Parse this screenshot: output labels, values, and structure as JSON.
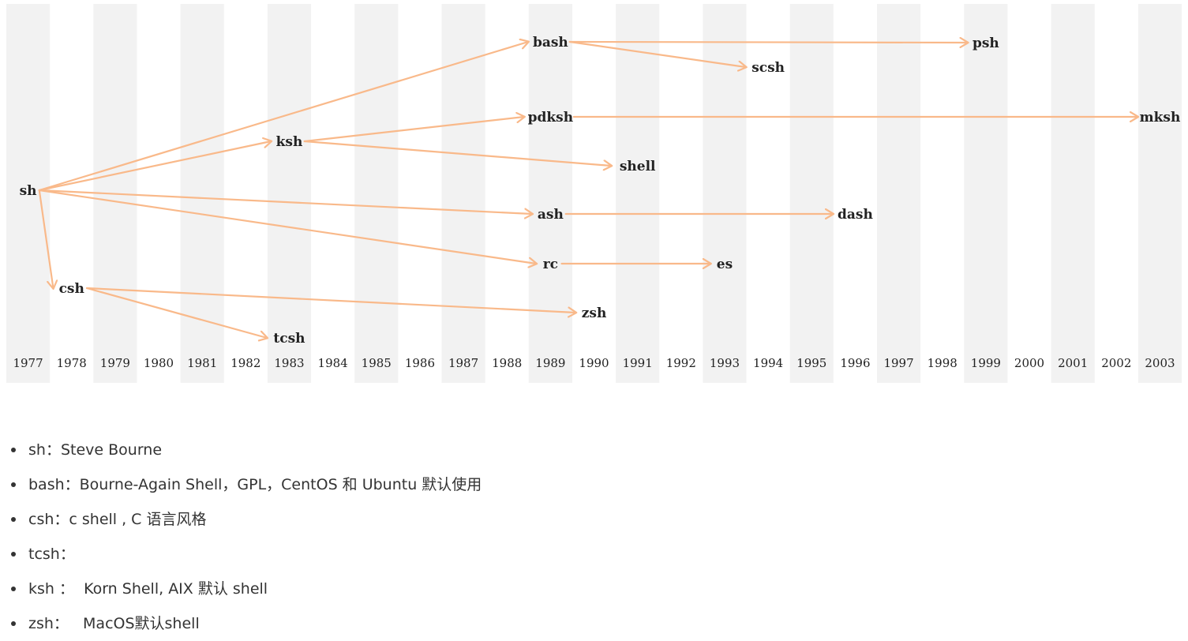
{
  "timeline": {
    "years": [
      "1977",
      "1978",
      "1979",
      "1980",
      "1981",
      "1982",
      "1983",
      "1984",
      "1985",
      "1986",
      "1987",
      "1988",
      "1989",
      "1990",
      "1991",
      "1992",
      "1993",
      "1994",
      "1995",
      "1996",
      "1997",
      "1998",
      "1999",
      "2000",
      "2001",
      "2002",
      "2003"
    ],
    "nodes": [
      {
        "id": "sh",
        "label": "sh",
        "year": 1977
      },
      {
        "id": "csh",
        "label": "csh",
        "year": 1978
      },
      {
        "id": "ksh",
        "label": "ksh",
        "year": 1983
      },
      {
        "id": "tcsh",
        "label": "tcsh",
        "year": 1983
      },
      {
        "id": "bash",
        "label": "bash",
        "year": 1989
      },
      {
        "id": "pdksh",
        "label": "pdksh",
        "year": 1989
      },
      {
        "id": "ash",
        "label": "ash",
        "year": 1989
      },
      {
        "id": "rc",
        "label": "rc",
        "year": 1989
      },
      {
        "id": "zsh",
        "label": "zsh",
        "year": 1990
      },
      {
        "id": "shell",
        "label": "shell",
        "year": 1991
      },
      {
        "id": "es",
        "label": "es",
        "year": 1993
      },
      {
        "id": "scsh",
        "label": "scsh",
        "year": 1994
      },
      {
        "id": "dash",
        "label": "dash",
        "year": 1996
      },
      {
        "id": "psh",
        "label": "psh",
        "year": 1999
      },
      {
        "id": "mksh",
        "label": "mksh",
        "year": 2003
      }
    ],
    "edges": [
      [
        "sh",
        "bash"
      ],
      [
        "sh",
        "ksh"
      ],
      [
        "sh",
        "ash"
      ],
      [
        "sh",
        "rc"
      ],
      [
        "sh",
        "csh"
      ],
      [
        "ksh",
        "pdksh"
      ],
      [
        "ksh",
        "shell"
      ],
      [
        "bash",
        "psh"
      ],
      [
        "bash",
        "scsh"
      ],
      [
        "pdksh",
        "mksh"
      ],
      [
        "ash",
        "dash"
      ],
      [
        "rc",
        "es"
      ],
      [
        "csh",
        "zsh"
      ],
      [
        "csh",
        "tcsh"
      ]
    ],
    "colors": {
      "arrow": "#f9b98a",
      "stripe": "#f2f2f2",
      "text": "#222222"
    }
  },
  "notes": [
    "sh：Steve Bourne",
    "bash：Bourne-Again Shell，GPL，CentOS 和 Ubuntu 默认使用",
    "csh：c shell , C 语言风格",
    "tcsh：",
    "ksh ：  Korn Shell, AIX 默认 shell",
    "zsh：   MacOS默认shell"
  ]
}
